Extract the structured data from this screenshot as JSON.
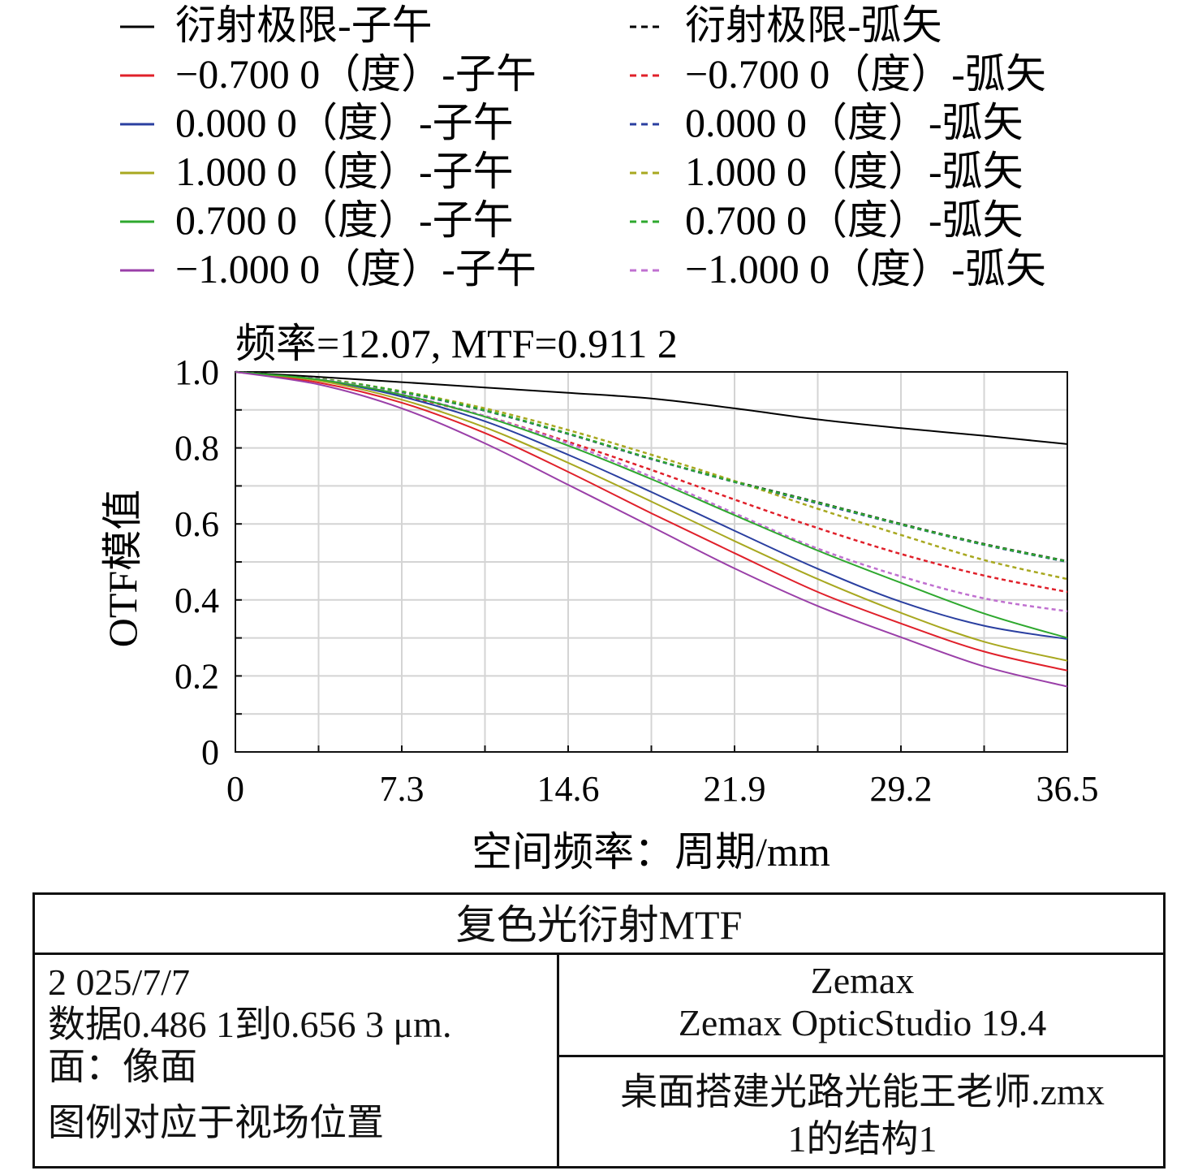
{
  "chart_data": {
    "type": "line",
    "title": "频率=12.07, MTF=0.911 2",
    "xlabel": "空间频率：周期/mm",
    "ylabel": "OTF模值",
    "xlim": [
      0,
      36.5
    ],
    "ylim": [
      0,
      1.0
    ],
    "x_ticks": [
      "0",
      "7.3",
      "14.6",
      "21.9",
      "29.2",
      "36.5"
    ],
    "y_ticks": [
      "0",
      "0.2",
      "0.4",
      "0.6",
      "0.8",
      "1.0"
    ],
    "grid": true,
    "legend_position": "top",
    "x": [
      0,
      3.65,
      7.3,
      10.95,
      14.6,
      18.25,
      21.9,
      25.55,
      29.2,
      32.85,
      36.5
    ],
    "series": [
      {
        "name": "衍射极限-子午",
        "color": "#000000",
        "dash": false,
        "values": [
          1.0,
          0.987,
          0.973,
          0.959,
          0.945,
          0.93,
          0.904,
          0.875,
          0.852,
          0.832,
          0.81
        ]
      },
      {
        "name": "衍射极限-弧矢",
        "color": "#000000",
        "dash": true,
        "values": [
          1.0,
          0.982,
          0.947,
          0.898,
          0.837,
          0.771,
          0.712,
          0.657,
          0.6,
          0.547,
          0.502
        ]
      },
      {
        "name": "−0.700 0（度）-子午",
        "color": "#e0202a",
        "dash": false,
        "values": [
          1.0,
          0.972,
          0.919,
          0.839,
          0.737,
          0.628,
          0.523,
          0.421,
          0.338,
          0.264,
          0.214
        ]
      },
      {
        "name": "−0.700 0（度）-弧矢",
        "color": "#e0202a",
        "dash": true,
        "values": [
          1.0,
          0.981,
          0.938,
          0.884,
          0.816,
          0.742,
          0.664,
          0.589,
          0.521,
          0.464,
          0.421
        ]
      },
      {
        "name": "0.000 0（度）-子午",
        "color": "#2a3fa0",
        "dash": false,
        "values": [
          1.0,
          0.979,
          0.935,
          0.87,
          0.782,
          0.684,
          0.582,
          0.482,
          0.395,
          0.332,
          0.297
        ]
      },
      {
        "name": "0.000 0（度）-弧矢",
        "color": "#2a3fa0",
        "dash": true,
        "values": [
          1.0,
          0.982,
          0.947,
          0.898,
          0.837,
          0.771,
          0.71,
          0.654,
          0.598,
          0.545,
          0.5
        ]
      },
      {
        "name": "1.000 0（度）-子午",
        "color": "#a8a820",
        "dash": false,
        "values": [
          1.0,
          0.977,
          0.927,
          0.854,
          0.761,
          0.659,
          0.555,
          0.455,
          0.366,
          0.29,
          0.24
        ]
      },
      {
        "name": "1.000 0（度）-弧矢",
        "color": "#a8a820",
        "dash": true,
        "values": [
          1.0,
          0.983,
          0.949,
          0.904,
          0.847,
          0.782,
          0.713,
          0.64,
          0.571,
          0.505,
          0.455
        ]
      },
      {
        "name": "0.700 0（度）-子午",
        "color": "#2ea82e",
        "dash": false,
        "values": [
          1.0,
          0.98,
          0.94,
          0.882,
          0.806,
          0.718,
          0.623,
          0.53,
          0.445,
          0.364,
          0.3
        ]
      },
      {
        "name": "0.700 0（度）-弧矢",
        "color": "#2ea82e",
        "dash": true,
        "values": [
          1.0,
          0.982,
          0.948,
          0.899,
          0.838,
          0.772,
          0.711,
          0.656,
          0.599,
          0.546,
          0.501
        ]
      },
      {
        "name": "−1.000 0（度）-子午",
        "color": "#9a3fa8",
        "dash": false,
        "values": [
          1.0,
          0.967,
          0.904,
          0.812,
          0.703,
          0.593,
          0.483,
          0.384,
          0.302,
          0.225,
          0.172
        ]
      },
      {
        "name": "−1.000 0（度）-弧矢",
        "color": "#c070d0",
        "dash": true,
        "values": [
          1.0,
          0.981,
          0.941,
          0.884,
          0.812,
          0.724,
          0.628,
          0.535,
          0.462,
          0.404,
          0.37
        ]
      }
    ]
  },
  "info": {
    "title": "复色光衍射MTF",
    "date": "2 025/7/7",
    "data_range": "数据0.486 1到0.656 3 μm.",
    "surface": "面：像面",
    "legend_note": "图例对应于视场位置",
    "software_1": "Zemax",
    "software_2": "Zemax OpticStudio 19.4",
    "file_1": "桌面搭建光路光能王老师.zmx",
    "file_2": "1的结构1"
  }
}
